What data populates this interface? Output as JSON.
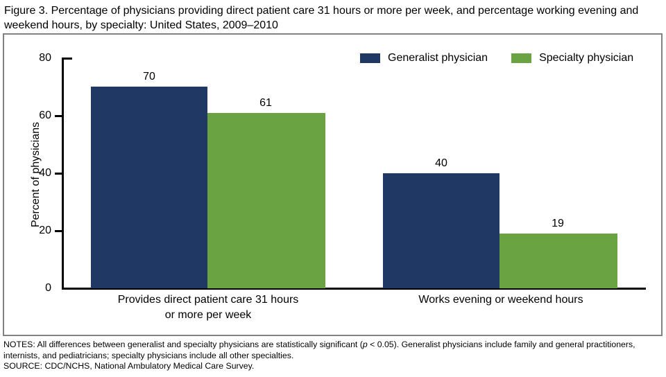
{
  "title": "Figure 3. Percentage of physicians providing direct patient care 31 hours or more per week, and percentage working evening and weekend hours, by specialty: United States, 2009–2010",
  "chart_data": {
    "type": "bar",
    "categories": [
      "Provides direct patient care 31 hours\nor more per week",
      "Works evening or weekend hours"
    ],
    "series": [
      {
        "name": "Generalist physician",
        "color": "#1f3864",
        "values": [
          70,
          40
        ]
      },
      {
        "name": "Specialty physician",
        "color": "#6aa342",
        "values": [
          61,
          19
        ]
      }
    ],
    "title": "",
    "xlabel": "",
    "ylabel": "Percent of physicians",
    "ylim": [
      0,
      80
    ],
    "yticks": [
      0,
      20,
      40,
      60,
      80
    ],
    "grid": false,
    "legend_position": "top-right",
    "bar_value_labels": [
      [
        70,
        40
      ],
      [
        61,
        19
      ]
    ]
  },
  "notes": {
    "prefix": "NOTES: All differences between generalist and specialty physicians are statistically significant (",
    "p_italic": "p",
    "suffix": " < 0.05). Generalist physicians include family and general practitioners, internists, and pediatricians; specialty physicians include all other specialties.",
    "source": "SOURCE: CDC/NCHS, National Ambulatory Medical Care Survey."
  }
}
